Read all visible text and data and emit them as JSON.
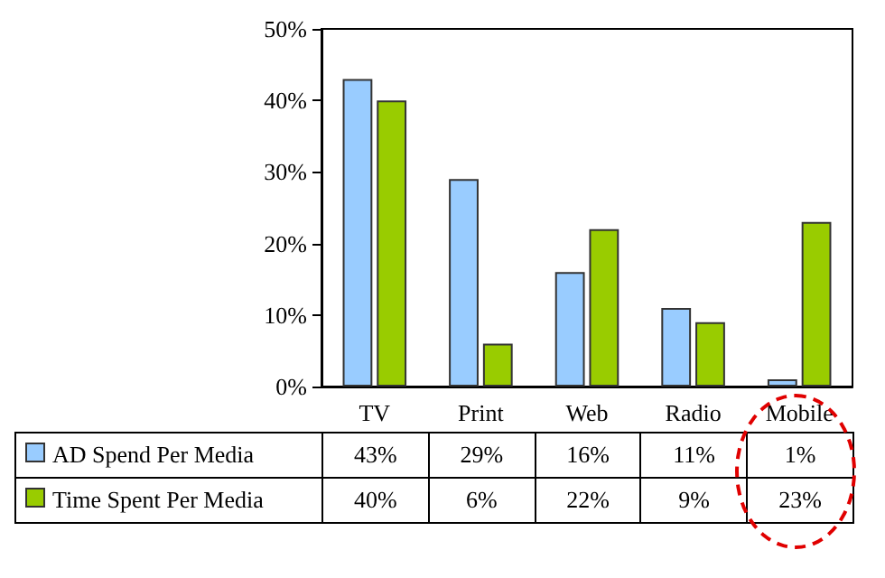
{
  "chart_data": {
    "type": "bar",
    "categories": [
      "TV",
      "Print",
      "Web",
      "Radio",
      "Mobile"
    ],
    "series": [
      {
        "name": "AD Spend Per Media",
        "color": "#99ccff",
        "values": [
          43,
          29,
          16,
          11,
          1
        ],
        "value_labels": [
          "43%",
          "29%",
          "16%",
          "11%",
          "1%"
        ]
      },
      {
        "name": "Time Spent Per Media",
        "color": "#99cc00",
        "values": [
          40,
          6,
          22,
          9,
          23
        ],
        "value_labels": [
          "40%",
          "6%",
          "22%",
          "9%",
          "23%"
        ]
      }
    ],
    "ylim": [
      0,
      50
    ],
    "yticks": [
      {
        "value": 0,
        "label": "0%"
      },
      {
        "value": 10,
        "label": "10%"
      },
      {
        "value": 20,
        "label": "20%"
      },
      {
        "value": 30,
        "label": "30%"
      },
      {
        "value": 40,
        "label": "40%"
      },
      {
        "value": 50,
        "label": "50%"
      }
    ],
    "grid": false,
    "legend": "bottom"
  }
}
